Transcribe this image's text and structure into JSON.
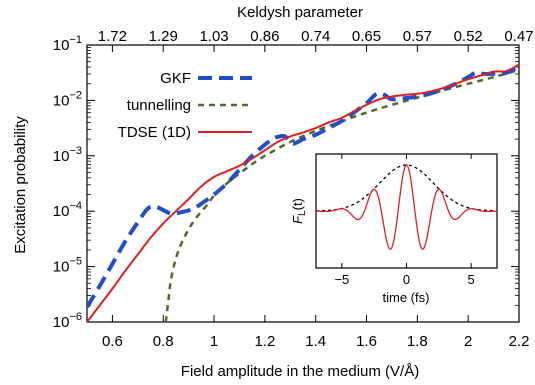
{
  "chart_data": [
    {
      "type": "line",
      "title": "",
      "xlabel": "Field amplitude in the medium (V/Å)",
      "ylabel": "Excitation probability",
      "top_axis_label": "Keldysh parameter",
      "xlim": [
        0.5,
        2.2
      ],
      "ylim_log10": [
        -6,
        -1
      ],
      "log_y": true,
      "grid": false,
      "legend_position": "top-left",
      "x_ticks": [
        "0.6",
        "0.8",
        "1",
        "1.2",
        "1.4",
        "1.6",
        "1.8",
        "2",
        "2.2"
      ],
      "x_tick_values": [
        0.6,
        0.8,
        1.0,
        1.2,
        1.4,
        1.6,
        1.8,
        2.0,
        2.2
      ],
      "y_ticks": [
        {
          "exp": -6,
          "base": "10",
          "sup": "−6"
        },
        {
          "exp": -5,
          "base": "10",
          "sup": "−5"
        },
        {
          "exp": -4,
          "base": "10",
          "sup": "−4"
        },
        {
          "exp": -3,
          "base": "10",
          "sup": "−3"
        },
        {
          "exp": -2,
          "base": "10",
          "sup": "−2"
        },
        {
          "exp": -1,
          "base": "10",
          "sup": "−1"
        }
      ],
      "top_ticks": [
        {
          "label": "1.72",
          "x": 0.6
        },
        {
          "label": "1.29",
          "x": 0.8
        },
        {
          "label": "1.03",
          "x": 1.0
        },
        {
          "label": "0.86",
          "x": 1.2
        },
        {
          "label": "0.74",
          "x": 1.4
        },
        {
          "label": "0.65",
          "x": 1.6
        },
        {
          "label": "0.57",
          "x": 1.8
        },
        {
          "label": "0.52",
          "x": 2.0
        },
        {
          "label": "0.47",
          "x": 2.2
        }
      ],
      "series": [
        {
          "name": "GKF",
          "color": "#1f4fcf",
          "style": "dashed-thick",
          "points": [
            [
              0.5,
              -5.73
            ],
            [
              0.55,
              -5.35
            ],
            [
              0.6,
              -4.95
            ],
            [
              0.65,
              -4.55
            ],
            [
              0.7,
              -4.2
            ],
            [
              0.74,
              -3.95
            ],
            [
              0.77,
              -3.92
            ],
            [
              0.8,
              -3.98
            ],
            [
              0.83,
              -4.04
            ],
            [
              0.87,
              -4.02
            ],
            [
              0.92,
              -3.95
            ],
            [
              0.97,
              -3.8
            ],
            [
              1.0,
              -3.7
            ],
            [
              1.05,
              -3.5
            ],
            [
              1.1,
              -3.25
            ],
            [
              1.15,
              -3.0
            ],
            [
              1.2,
              -2.8
            ],
            [
              1.23,
              -2.7
            ],
            [
              1.25,
              -2.66
            ],
            [
              1.28,
              -2.65
            ],
            [
              1.31,
              -2.78
            ],
            [
              1.35,
              -2.7
            ],
            [
              1.4,
              -2.62
            ],
            [
              1.45,
              -2.5
            ],
            [
              1.5,
              -2.38
            ],
            [
              1.55,
              -2.22
            ],
            [
              1.6,
              -2.05
            ],
            [
              1.64,
              -1.88
            ],
            [
              1.67,
              -1.9
            ],
            [
              1.7,
              -1.98
            ],
            [
              1.75,
              -1.96
            ],
            [
              1.8,
              -1.93
            ],
            [
              1.85,
              -1.88
            ],
            [
              1.9,
              -1.8
            ],
            [
              1.95,
              -1.7
            ],
            [
              2.0,
              -1.58
            ],
            [
              2.03,
              -1.5
            ],
            [
              2.06,
              -1.52
            ],
            [
              2.1,
              -1.52
            ],
            [
              2.15,
              -1.5
            ],
            [
              2.2,
              -1.38
            ]
          ]
        },
        {
          "name": "tunnelling",
          "color": "#4f6b28",
          "style": "dashed-fine",
          "points": [
            [
              0.81,
              -6.0
            ],
            [
              0.82,
              -5.62
            ],
            [
              0.83,
              -5.25
            ],
            [
              0.85,
              -4.85
            ],
            [
              0.88,
              -4.5
            ],
            [
              0.92,
              -4.18
            ],
            [
              0.97,
              -3.9
            ],
            [
              1.0,
              -3.72
            ],
            [
              1.05,
              -3.5
            ],
            [
              1.1,
              -3.32
            ],
            [
              1.15,
              -3.15
            ],
            [
              1.2,
              -3.0
            ],
            [
              1.3,
              -2.75
            ],
            [
              1.4,
              -2.55
            ],
            [
              1.5,
              -2.38
            ],
            [
              1.6,
              -2.22
            ],
            [
              1.7,
              -2.08
            ],
            [
              1.8,
              -1.95
            ],
            [
              1.9,
              -1.82
            ],
            [
              2.0,
              -1.7
            ],
            [
              2.1,
              -1.58
            ],
            [
              2.2,
              -1.45
            ]
          ]
        },
        {
          "name": "TDSE (1D)",
          "color": "#e02020",
          "style": "solid",
          "points": [
            [
              0.5,
              -6.0
            ],
            [
              0.55,
              -5.7
            ],
            [
              0.6,
              -5.4
            ],
            [
              0.65,
              -5.08
            ],
            [
              0.7,
              -4.78
            ],
            [
              0.75,
              -4.48
            ],
            [
              0.8,
              -4.22
            ],
            [
              0.85,
              -4.0
            ],
            [
              0.9,
              -3.78
            ],
            [
              0.95,
              -3.55
            ],
            [
              1.0,
              -3.38
            ],
            [
              1.05,
              -3.28
            ],
            [
              1.1,
              -3.18
            ],
            [
              1.15,
              -3.05
            ],
            [
              1.2,
              -2.9
            ],
            [
              1.25,
              -2.75
            ],
            [
              1.3,
              -2.65
            ],
            [
              1.35,
              -2.58
            ],
            [
              1.4,
              -2.5
            ],
            [
              1.45,
              -2.4
            ],
            [
              1.5,
              -2.32
            ],
            [
              1.55,
              -2.2
            ],
            [
              1.6,
              -2.08
            ],
            [
              1.65,
              -1.98
            ],
            [
              1.7,
              -1.93
            ],
            [
              1.75,
              -1.9
            ],
            [
              1.8,
              -1.88
            ],
            [
              1.85,
              -1.84
            ],
            [
              1.9,
              -1.78
            ],
            [
              1.95,
              -1.7
            ],
            [
              2.0,
              -1.62
            ],
            [
              2.05,
              -1.55
            ],
            [
              2.1,
              -1.48
            ],
            [
              2.15,
              -1.47
            ],
            [
              2.2,
              -1.35
            ]
          ]
        }
      ]
    },
    {
      "type": "line",
      "title": "",
      "xlabel": "time (fs)",
      "ylabel_base": "F",
      "ylabel_sub": "L",
      "ylabel_arg": "(t)",
      "xlim": [
        -7,
        7
      ],
      "x_ticks": [
        "−5",
        "0",
        "5"
      ],
      "x_tick_values": [
        -5,
        0,
        5
      ],
      "series": [
        {
          "name": "",
          "color": "#e02020",
          "style": "solid",
          "kind": "field",
          "sigma_fs": 2.6,
          "period_fs": 2.6
        },
        {
          "name": "",
          "color": "#000000",
          "style": "dashed",
          "kind": "envelope",
          "sigma_fs": 2.6
        }
      ]
    }
  ]
}
